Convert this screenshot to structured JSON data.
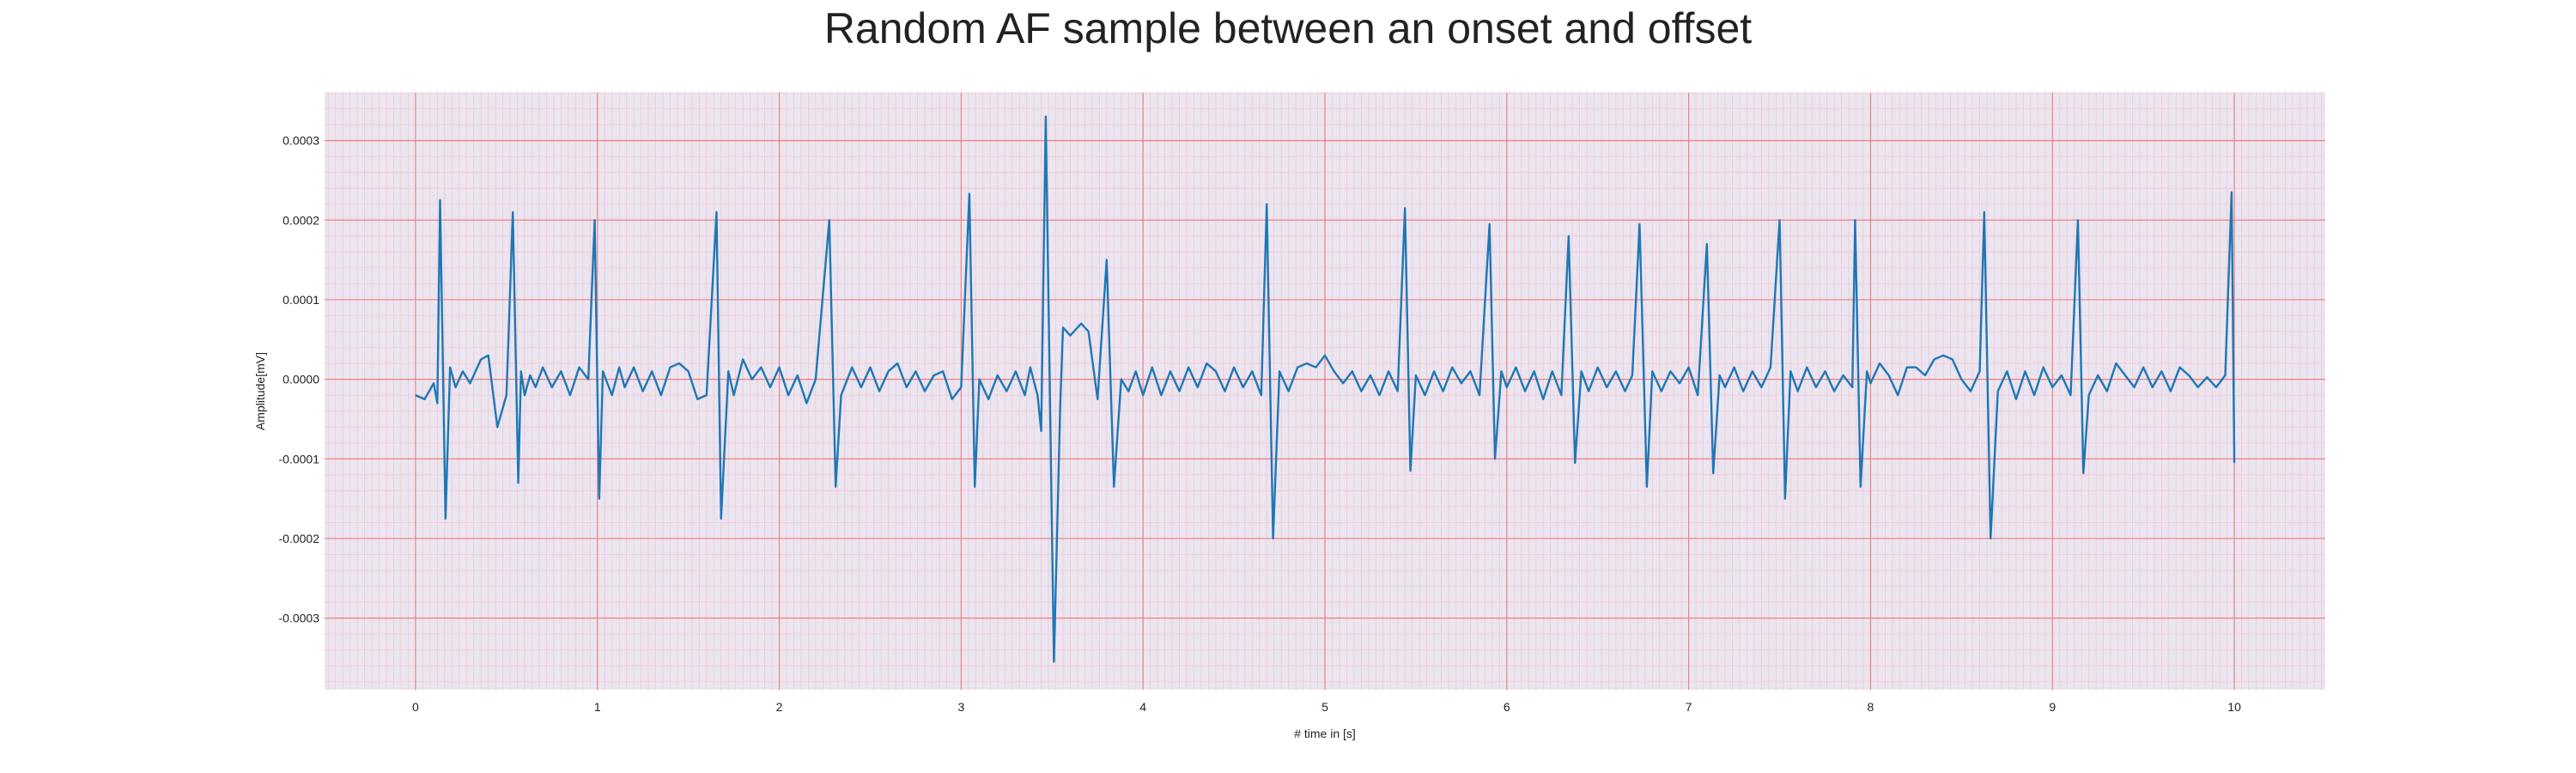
{
  "chart_data": {
    "type": "line",
    "title": "Random AF sample between an onset and offset",
    "xlabel": "# time in [s]",
    "ylabel": "Amplitude[mV]",
    "xlim": [
      -0.5,
      10.5
    ],
    "ylim": [
      -0.00039,
      0.00036
    ],
    "x_ticks": [
      0,
      1,
      2,
      3,
      4,
      5,
      6,
      7,
      8,
      9,
      10
    ],
    "x_tick_labels": [
      "0",
      "1",
      "2",
      "3",
      "4",
      "5",
      "6",
      "7",
      "8",
      "9",
      "10"
    ],
    "y_ticks": [
      -0.0003,
      -0.0002,
      -0.0001,
      0.0,
      0.0001,
      0.0002,
      0.0003
    ],
    "y_tick_labels": [
      "-0.0003",
      "-0.0002",
      "-0.0001",
      "0.0000",
      "0.0001",
      "0.0002",
      "0.0003"
    ],
    "grid": true,
    "minor_grid": true,
    "colors": {
      "line": "#1f77b4",
      "major_grid": "#f08080",
      "minor_grid": "#f5c4cf",
      "plot_background": "#eae6f1",
      "text": "#222222"
    },
    "series": [
      {
        "values": [
          [
            0.0,
            -2e-05
          ],
          [
            0.05,
            -2.5e-05
          ],
          [
            0.1,
            -5e-06
          ],
          [
            0.12,
            -3e-05
          ],
          [
            0.135,
            0.000225
          ],
          [
            0.165,
            -0.000175
          ],
          [
            0.19,
            1.5e-05
          ],
          [
            0.22,
            -1e-05
          ],
          [
            0.26,
            1e-05
          ],
          [
            0.3,
            -5e-06
          ],
          [
            0.36,
            2.5e-05
          ],
          [
            0.4,
            3e-05
          ],
          [
            0.45,
            -6e-05
          ],
          [
            0.5,
            -2e-05
          ],
          [
            0.535,
            0.00021
          ],
          [
            0.565,
            -0.00013
          ],
          [
            0.58,
            1e-05
          ],
          [
            0.6,
            -2e-05
          ],
          [
            0.63,
            5e-06
          ],
          [
            0.66,
            -1e-05
          ],
          [
            0.7,
            1.5e-05
          ],
          [
            0.75,
            -1e-05
          ],
          [
            0.8,
            1e-05
          ],
          [
            0.85,
            -2e-05
          ],
          [
            0.9,
            1.5e-05
          ],
          [
            0.95,
            0.0
          ],
          [
            0.985,
            0.0002
          ],
          [
            1.01,
            -0.00015
          ],
          [
            1.03,
            1e-05
          ],
          [
            1.08,
            -2e-05
          ],
          [
            1.12,
            1.5e-05
          ],
          [
            1.15,
            -1e-05
          ],
          [
            1.2,
            1.5e-05
          ],
          [
            1.25,
            -1.5e-05
          ],
          [
            1.3,
            1e-05
          ],
          [
            1.35,
            -2e-05
          ],
          [
            1.4,
            1.5e-05
          ],
          [
            1.45,
            2e-05
          ],
          [
            1.5,
            1e-05
          ],
          [
            1.55,
            -2.5e-05
          ],
          [
            1.6,
            -2e-05
          ],
          [
            1.655,
            0.00021
          ],
          [
            1.68,
            -0.000175
          ],
          [
            1.72,
            1e-05
          ],
          [
            1.75,
            -2e-05
          ],
          [
            1.8,
            2.5e-05
          ],
          [
            1.85,
            0.0
          ],
          [
            1.9,
            1.5e-05
          ],
          [
            1.95,
            -1e-05
          ],
          [
            2.0,
            1.5e-05
          ],
          [
            2.05,
            -2e-05
          ],
          [
            2.1,
            5e-06
          ],
          [
            2.15,
            -3e-05
          ],
          [
            2.2,
            0.0
          ],
          [
            2.275,
            0.0002
          ],
          [
            2.31,
            -0.000135
          ],
          [
            2.34,
            -2e-05
          ],
          [
            2.4,
            1.5e-05
          ],
          [
            2.45,
            -1e-05
          ],
          [
            2.5,
            1.5e-05
          ],
          [
            2.55,
            -1.5e-05
          ],
          [
            2.6,
            1e-05
          ],
          [
            2.65,
            2e-05
          ],
          [
            2.7,
            -1e-05
          ],
          [
            2.75,
            1e-05
          ],
          [
            2.8,
            -1.5e-05
          ],
          [
            2.85,
            5e-06
          ],
          [
            2.9,
            1e-05
          ],
          [
            2.95,
            -2.5e-05
          ],
          [
            3.0,
            -1e-05
          ],
          [
            3.045,
            0.000233
          ],
          [
            3.075,
            -0.000135
          ],
          [
            3.1,
            0.0
          ],
          [
            3.15,
            -2.5e-05
          ],
          [
            3.2,
            5e-06
          ],
          [
            3.25,
            -1.5e-05
          ],
          [
            3.3,
            1e-05
          ],
          [
            3.35,
            -2e-05
          ],
          [
            3.38,
            1.5e-05
          ],
          [
            3.42,
            -2e-05
          ],
          [
            3.44,
            -6.5e-05
          ],
          [
            3.465,
            0.00033
          ],
          [
            3.51,
            -0.000355
          ],
          [
            3.545,
            -3e-05
          ],
          [
            3.56,
            6.5e-05
          ],
          [
            3.6,
            5.5e-05
          ],
          [
            3.62,
            6e-05
          ],
          [
            3.66,
            7e-05
          ],
          [
            3.7,
            6e-05
          ],
          [
            3.75,
            -2.5e-05
          ],
          [
            3.8,
            0.00015
          ],
          [
            3.84,
            -0.000135
          ],
          [
            3.88,
            0.0
          ],
          [
            3.92,
            -1.5e-05
          ],
          [
            3.96,
            1e-05
          ],
          [
            4.0,
            -2e-05
          ],
          [
            4.05,
            1.5e-05
          ],
          [
            4.1,
            -2e-05
          ],
          [
            4.15,
            1e-05
          ],
          [
            4.2,
            -1.5e-05
          ],
          [
            4.25,
            1.5e-05
          ],
          [
            4.3,
            -1e-05
          ],
          [
            4.35,
            2e-05
          ],
          [
            4.4,
            1e-05
          ],
          [
            4.45,
            -1.5e-05
          ],
          [
            4.5,
            1.5e-05
          ],
          [
            4.55,
            -1e-05
          ],
          [
            4.6,
            1e-05
          ],
          [
            4.65,
            -2e-05
          ],
          [
            4.68,
            0.00022
          ],
          [
            4.715,
            -0.0002
          ],
          [
            4.75,
            1e-05
          ],
          [
            4.8,
            -1.5e-05
          ],
          [
            4.85,
            1.5e-05
          ],
          [
            4.9,
            2e-05
          ],
          [
            4.95,
            1.5e-05
          ],
          [
            5.0,
            3e-05
          ],
          [
            5.05,
            1e-05
          ],
          [
            5.1,
            -5e-06
          ],
          [
            5.15,
            1e-05
          ],
          [
            5.2,
            -1.5e-05
          ],
          [
            5.25,
            5e-06
          ],
          [
            5.3,
            -2e-05
          ],
          [
            5.35,
            1e-05
          ],
          [
            5.4,
            -1.5e-05
          ],
          [
            5.44,
            0.000215
          ],
          [
            5.47,
            -0.000115
          ],
          [
            5.5,
            5e-06
          ],
          [
            5.55,
            -2e-05
          ],
          [
            5.6,
            1e-05
          ],
          [
            5.65,
            -1.5e-05
          ],
          [
            5.7,
            1.5e-05
          ],
          [
            5.75,
            -5e-06
          ],
          [
            5.8,
            1e-05
          ],
          [
            5.85,
            -2e-05
          ],
          [
            5.905,
            0.000195
          ],
          [
            5.935,
            -0.0001
          ],
          [
            5.97,
            1e-05
          ],
          [
            6.0,
            -1e-05
          ],
          [
            6.05,
            1.5e-05
          ],
          [
            6.1,
            -1.5e-05
          ],
          [
            6.15,
            1e-05
          ],
          [
            6.2,
            -2.5e-05
          ],
          [
            6.25,
            1e-05
          ],
          [
            6.3,
            -2e-05
          ],
          [
            6.34,
            0.00018
          ],
          [
            6.375,
            -0.000105
          ],
          [
            6.41,
            1e-05
          ],
          [
            6.45,
            -1.5e-05
          ],
          [
            6.5,
            1.5e-05
          ],
          [
            6.55,
            -1e-05
          ],
          [
            6.6,
            1e-05
          ],
          [
            6.65,
            -1.5e-05
          ],
          [
            6.69,
            5e-06
          ],
          [
            6.73,
            0.000195
          ],
          [
            6.77,
            -0.000135
          ],
          [
            6.8,
            1e-05
          ],
          [
            6.85,
            -1.5e-05
          ],
          [
            6.9,
            1e-05
          ],
          [
            6.95,
            -5e-06
          ],
          [
            7.0,
            1.5e-05
          ],
          [
            7.05,
            -2e-05
          ],
          [
            7.1,
            0.00017
          ],
          [
            7.135,
            -0.000118
          ],
          [
            7.17,
            5e-06
          ],
          [
            7.2,
            -1e-05
          ],
          [
            7.25,
            1.5e-05
          ],
          [
            7.3,
            -1.5e-05
          ],
          [
            7.35,
            1e-05
          ],
          [
            7.4,
            -1e-05
          ],
          [
            7.45,
            1.5e-05
          ],
          [
            7.5,
            0.0002
          ],
          [
            7.53,
            -0.00015
          ],
          [
            7.56,
            1e-05
          ],
          [
            7.6,
            -1.5e-05
          ],
          [
            7.65,
            1.5e-05
          ],
          [
            7.7,
            -1e-05
          ],
          [
            7.75,
            1e-05
          ],
          [
            7.8,
            -1.5e-05
          ],
          [
            7.85,
            5e-06
          ],
          [
            7.9,
            -1e-05
          ],
          [
            7.915,
            0.0002
          ],
          [
            7.945,
            -0.000135
          ],
          [
            7.98,
            1e-05
          ],
          [
            8.0,
            -5e-06
          ],
          [
            8.05,
            2e-05
          ],
          [
            8.1,
            5e-06
          ],
          [
            8.15,
            -2e-05
          ],
          [
            8.2,
            1.5e-05
          ],
          [
            8.25,
            1.5e-05
          ],
          [
            8.3,
            5e-06
          ],
          [
            8.35,
            2.5e-05
          ],
          [
            8.4,
            3e-05
          ],
          [
            8.45,
            2.5e-05
          ],
          [
            8.5,
            0.0
          ],
          [
            8.55,
            -1.5e-05
          ],
          [
            8.6,
            1e-05
          ],
          [
            8.625,
            0.00021
          ],
          [
            8.66,
            -0.0002
          ],
          [
            8.7,
            -1.5e-05
          ],
          [
            8.75,
            1e-05
          ],
          [
            8.8,
            -2.5e-05
          ],
          [
            8.85,
            1e-05
          ],
          [
            8.9,
            -2e-05
          ],
          [
            8.95,
            1.5e-05
          ],
          [
            9.0,
            -1e-05
          ],
          [
            9.05,
            5e-06
          ],
          [
            9.1,
            -2e-05
          ],
          [
            9.14,
            0.0002
          ],
          [
            9.17,
            -0.000118
          ],
          [
            9.2,
            -2e-05
          ],
          [
            9.25,
            5e-06
          ],
          [
            9.3,
            -1.5e-05
          ],
          [
            9.35,
            2e-05
          ],
          [
            9.4,
            5e-06
          ],
          [
            9.45,
            -1e-05
          ],
          [
            9.5,
            1.5e-05
          ],
          [
            9.55,
            -1e-05
          ],
          [
            9.6,
            1e-05
          ],
          [
            9.65,
            -1.5e-05
          ],
          [
            9.7,
            1.5e-05
          ],
          [
            9.75,
            5e-06
          ],
          [
            9.8,
            -1e-05
          ],
          [
            9.85,
            2.5e-06
          ],
          [
            9.9,
            -1e-05
          ],
          [
            9.95,
            5e-06
          ],
          [
            9.985,
            0.000235
          ],
          [
            10.0,
            -0.000105
          ]
        ]
      }
    ]
  }
}
